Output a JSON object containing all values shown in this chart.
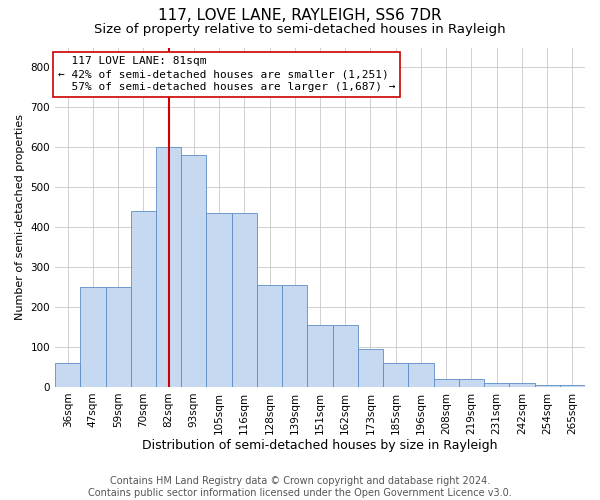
{
  "title": "117, LOVE LANE, RAYLEIGH, SS6 7DR",
  "subtitle": "Size of property relative to semi-detached houses in Rayleigh",
  "xlabel": "Distribution of semi-detached houses by size in Rayleigh",
  "ylabel": "Number of semi-detached properties",
  "footer_line1": "Contains HM Land Registry data © Crown copyright and database right 2024.",
  "footer_line2": "Contains public sector information licensed under the Open Government Licence v3.0.",
  "categories": [
    "36sqm",
    "47sqm",
    "59sqm",
    "70sqm",
    "82sqm",
    "93sqm",
    "105sqm",
    "116sqm",
    "128sqm",
    "139sqm",
    "151sqm",
    "162sqm",
    "173sqm",
    "185sqm",
    "196sqm",
    "208sqm",
    "219sqm",
    "231sqm",
    "242sqm",
    "254sqm",
    "265sqm"
  ],
  "values": [
    60,
    250,
    250,
    440,
    600,
    580,
    435,
    435,
    255,
    255,
    155,
    155,
    95,
    60,
    60,
    20,
    20,
    10,
    10,
    5,
    5
  ],
  "bar_color": "#c6d9f0",
  "bar_edge_color": "#5b8ec4",
  "property_label": "117 LOVE LANE: 81sqm",
  "pct_smaller": 42,
  "count_smaller": 1251,
  "pct_larger": 57,
  "count_larger": 1687,
  "vline_x_index": 4,
  "vline_color": "#cc0000",
  "ylim": [
    0,
    850
  ],
  "yticks": [
    0,
    100,
    200,
    300,
    400,
    500,
    600,
    700,
    800
  ],
  "grid_color": "#d0d0d0",
  "title_fontsize": 11,
  "subtitle_fontsize": 9.5,
  "xlabel_fontsize": 9,
  "ylabel_fontsize": 8,
  "tick_fontsize": 7.5,
  "annotation_fontsize": 8,
  "footer_fontsize": 7
}
